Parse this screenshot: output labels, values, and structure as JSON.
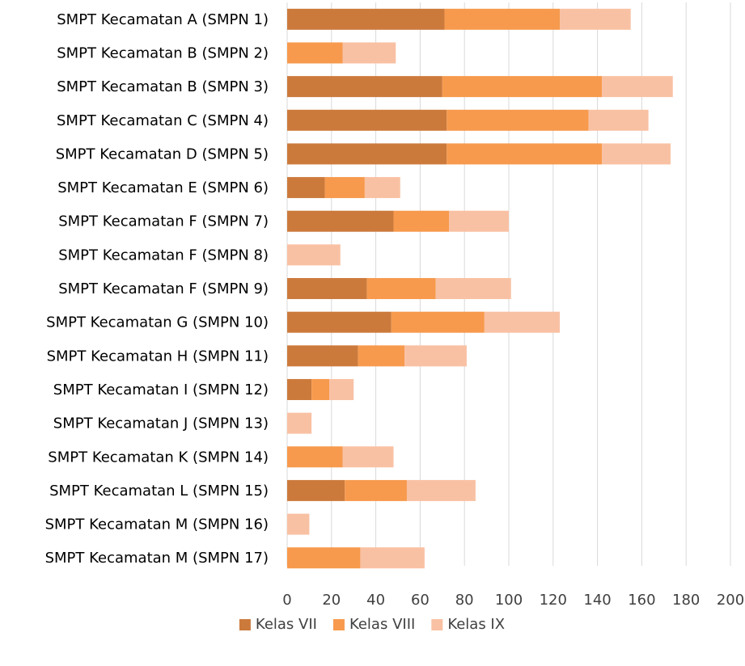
{
  "chart_data": {
    "type": "bar",
    "orientation": "horizontal",
    "stacked": true,
    "title": "",
    "xlabel": "",
    "ylabel": "",
    "xlim": [
      0,
      200
    ],
    "x_ticks": [
      0,
      20,
      40,
      60,
      80,
      100,
      120,
      140,
      160,
      180,
      200
    ],
    "x_tick_labels": [
      "0",
      "20",
      "40",
      "60",
      "80",
      "100",
      "120",
      "140",
      "160",
      "180",
      "200"
    ],
    "grid": "vertical",
    "legend_position": "bottom",
    "categories": [
      "SMPT Kecamatan A (SMPN 1)",
      "SMPT Kecamatan B (SMPN 2)",
      "SMPT Kecamatan B (SMPN 3)",
      "SMPT Kecamatan C (SMPN 4)",
      "SMPT Kecamatan D (SMPN 5)",
      "SMPT Kecamatan E (SMPN 6)",
      "SMPT Kecamatan F (SMPN 7)",
      "SMPT Kecamatan F (SMPN 8)",
      "SMPT Kecamatan F (SMPN 9)",
      "SMPT Kecamatan G (SMPN 10)",
      "SMPT Kecamatan H (SMPN 11)",
      "SMPT Kecamatan I (SMPN 12)",
      "SMPT Kecamatan J (SMPN 13)",
      "SMPT Kecamatan K (SMPN 14)",
      "SMPT Kecamatan L (SMPN 15)",
      "SMPT Kecamatan M (SMPN 16)",
      "SMPT Kecamatan M (SMPN 17)"
    ],
    "series": [
      {
        "name": "Kelas VII",
        "color": "#cc7a3c",
        "values": [
          71,
          0,
          70,
          72,
          72,
          17,
          48,
          0,
          36,
          47,
          32,
          11,
          0,
          0,
          26,
          0,
          0
        ]
      },
      {
        "name": "Kelas VIII",
        "color": "#f79a4d",
        "values": [
          52,
          25,
          72,
          64,
          70,
          18,
          25,
          0,
          31,
          42,
          21,
          8,
          0,
          25,
          28,
          0,
          33
        ]
      },
      {
        "name": "Kelas IX",
        "color": "#f9c1a3",
        "values": [
          32,
          24,
          32,
          27,
          31,
          16,
          27,
          24,
          34,
          34,
          28,
          11,
          11,
          23,
          31,
          10,
          29
        ]
      }
    ],
    "colors": {
      "grid": "#d9d9d9",
      "text": "#000000",
      "tick_text": "#404040"
    }
  }
}
